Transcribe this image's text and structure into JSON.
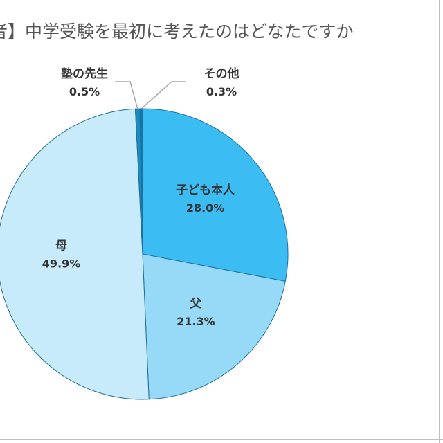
{
  "chart_data": {
    "type": "pie",
    "title": "者】中学受験を最初に考えたのはどなたですか",
    "slices": [
      {
        "label": "子ども本人",
        "value": 28.0,
        "value_text": "28.0%",
        "color": "#3bbcf2"
      },
      {
        "label": "父",
        "value": 21.3,
        "value_text": "21.3%",
        "color": "#97daf7"
      },
      {
        "label": "母",
        "value": 49.9,
        "value_text": "49.9%",
        "color": "#c7ebfa"
      },
      {
        "label": "塾の先生",
        "value": 0.5,
        "value_text": "0.5%",
        "color": "#1a8cc0"
      },
      {
        "label": "その他",
        "value": 0.3,
        "value_text": "0.3%",
        "color": "#1577a6"
      }
    ],
    "start": "top",
    "direction": "clockwise",
    "edge_color": "#1f6f9a",
    "leader_line_color": "#a6a6a6",
    "legend": "none"
  }
}
